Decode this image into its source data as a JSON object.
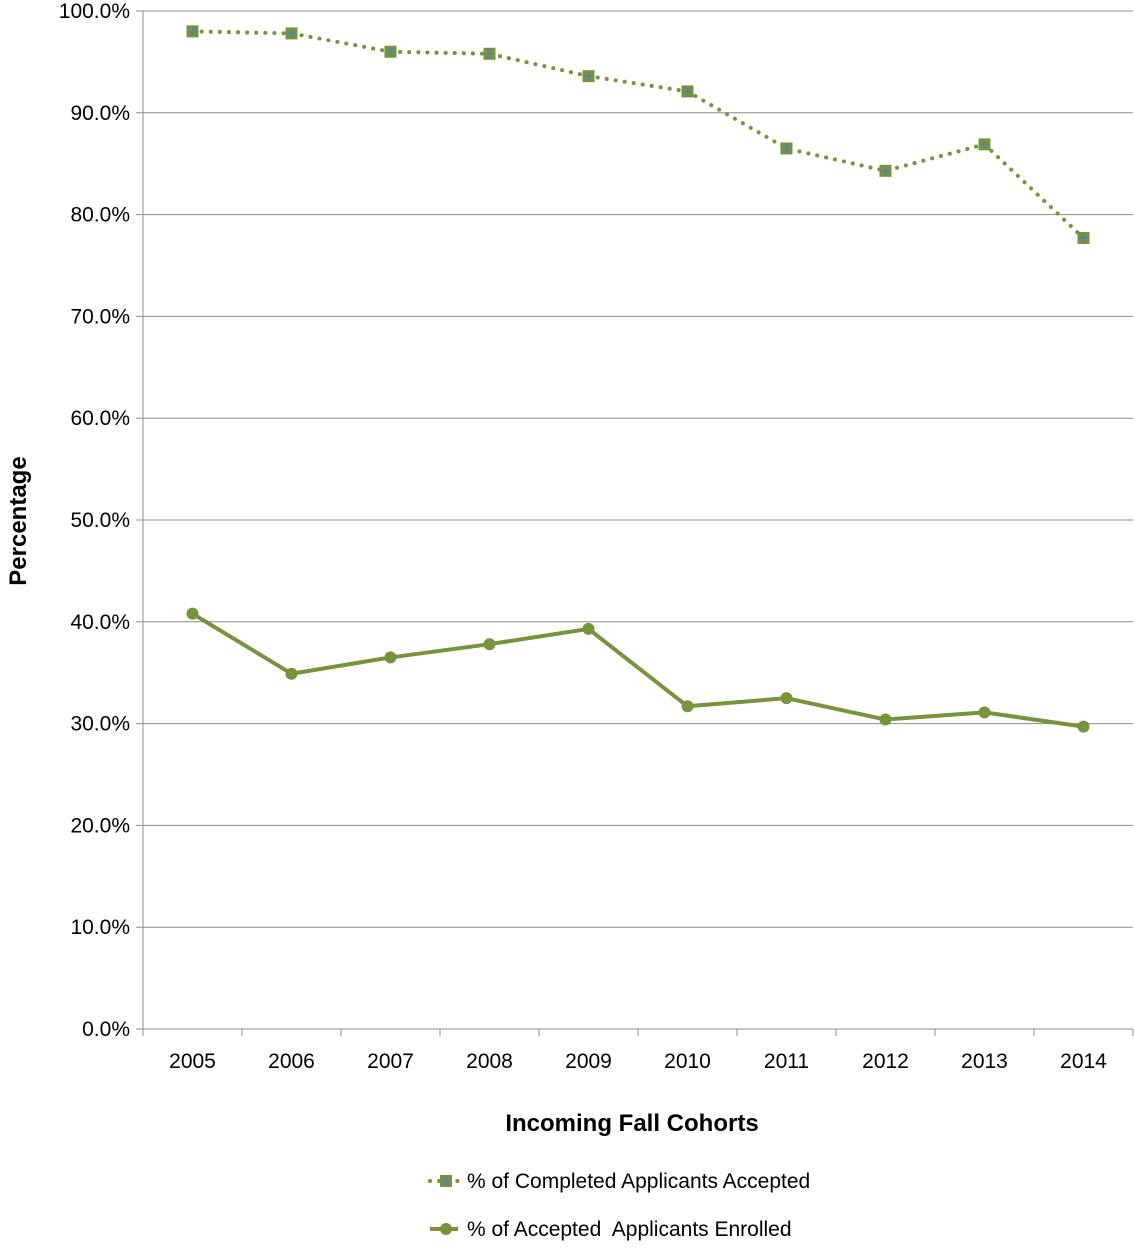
{
  "chart_data": {
    "type": "line",
    "xlabel": "Incoming Fall Cohorts",
    "ylabel": "Percentage",
    "categories": [
      "2005",
      "2006",
      "2007",
      "2008",
      "2009",
      "2010",
      "2011",
      "2012",
      "2013",
      "2014"
    ],
    "ylim": [
      0,
      100
    ],
    "y_ticks": [
      "0.0%",
      "10.0%",
      "20.0%",
      "30.0%",
      "40.0%",
      "50.0%",
      "60.0%",
      "70.0%",
      "80.0%",
      "90.0%",
      "100.0%"
    ],
    "grid": true,
    "legend_position": "bottom",
    "series": [
      {
        "name": "% of Completed Applicants Accepted",
        "values": [
          98.0,
          97.8,
          96.0,
          95.8,
          93.6,
          92.1,
          86.5,
          84.3,
          86.9,
          77.7
        ],
        "color": "#77933c",
        "marker_color": "#4f81bd",
        "line_style": "dotted",
        "marker": "square"
      },
      {
        "name": "% of Accepted  Applicants Enrolled",
        "values": [
          40.8,
          34.9,
          36.5,
          37.8,
          39.3,
          31.7,
          32.5,
          30.4,
          31.1,
          29.7
        ],
        "color": "#77933c",
        "line_style": "solid",
        "marker": "circle"
      }
    ]
  }
}
